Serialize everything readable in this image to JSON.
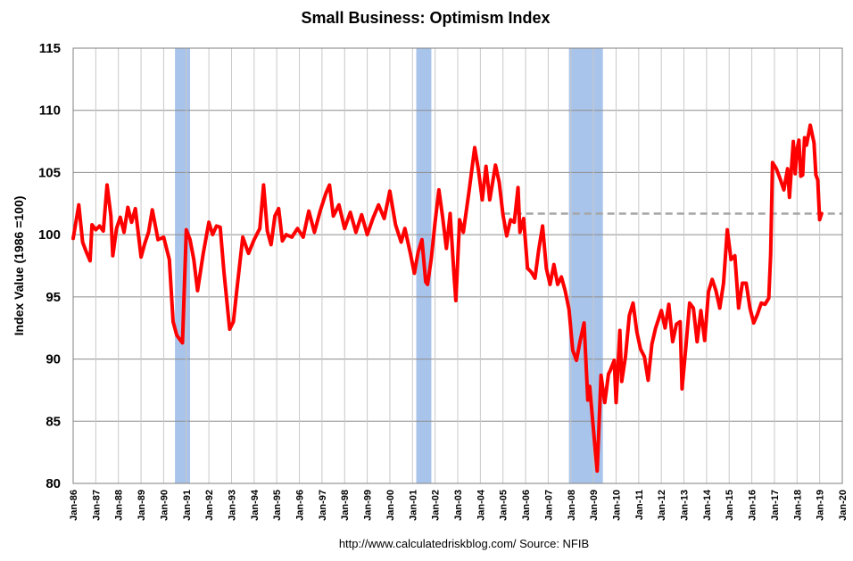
{
  "chart_data": {
    "type": "line",
    "title": "Small Business: Optimism Index",
    "ylabel": "Index Value (1986 =100)",
    "source": "http://www.calculatedriskblog.com/  Source: NFIB",
    "ylim": [
      80,
      115
    ],
    "yticks": [
      80,
      85,
      90,
      95,
      100,
      105,
      110,
      115
    ],
    "xlim": [
      1986,
      2020
    ],
    "xtick_labels": [
      "Jan-86",
      "Jan-87",
      "Jan-88",
      "Jan-89",
      "Jan-90",
      "Jan-91",
      "Jan-92",
      "Jan-93",
      "Jan-94",
      "Jan-95",
      "Jan-96",
      "Jan-97",
      "Jan-98",
      "Jan-99",
      "Jan-00",
      "Jan-01",
      "Jan-02",
      "Jan-03",
      "Jan-04",
      "Jan-05",
      "Jan-06",
      "Jan-07",
      "Jan-08",
      "Jan-09",
      "Jan-10",
      "Jan-11",
      "Jan-12",
      "Jan-13",
      "Jan-14",
      "Jan-15",
      "Jan-16",
      "Jan-17",
      "Jan-18",
      "Jan-19",
      "Jan-20"
    ],
    "grid": true,
    "recessions": [
      {
        "start": "Jul-90",
        "end": "Mar-91"
      },
      {
        "start": "Mar-01",
        "end": "Nov-01"
      },
      {
        "start": "Dec-07",
        "end": "Jun-09"
      }
    ],
    "reference_line": {
      "value": 101.7,
      "from": "Jan-05",
      "to": "Jan-20",
      "style": "dashed",
      "color": "#a6a6a6"
    },
    "series": [
      {
        "color": "#ff0000",
        "points": [
          [
            "Jan-86",
            99.7
          ],
          [
            "Apr-86",
            102.4
          ],
          [
            "Jun-86",
            99.4
          ],
          [
            "Aug-86",
            98.6
          ],
          [
            "Oct-86",
            97.9
          ],
          [
            "Nov-86",
            100.8
          ],
          [
            "Jan-87",
            100.4
          ],
          [
            "Mar-87",
            100.7
          ],
          [
            "May-87",
            100.3
          ],
          [
            "Jul-87",
            104.0
          ],
          [
            "Sep-87",
            101.5
          ],
          [
            "Oct-87",
            98.3
          ],
          [
            "Dec-87",
            100.5
          ],
          [
            "Feb-88",
            101.4
          ],
          [
            "Apr-88",
            100.2
          ],
          [
            "Jun-88",
            102.2
          ],
          [
            "Aug-88",
            101.0
          ],
          [
            "Oct-88",
            102.1
          ],
          [
            "Jan-89",
            98.2
          ],
          [
            "Mar-89",
            99.3
          ],
          [
            "May-89",
            100.2
          ],
          [
            "Jul-89",
            102.0
          ],
          [
            "Oct-89",
            99.6
          ],
          [
            "Jan-90",
            99.8
          ],
          [
            "Apr-90",
            98.0
          ],
          [
            "Jun-90",
            93.0
          ],
          [
            "Aug-90",
            91.9
          ],
          [
            "Nov-90",
            91.3
          ],
          [
            "Jan-91",
            100.4
          ],
          [
            "Mar-91",
            99.6
          ],
          [
            "May-91",
            98.0
          ],
          [
            "Jul-91",
            95.5
          ],
          [
            "Oct-91",
            98.5
          ],
          [
            "Jan-92",
            101.0
          ],
          [
            "Mar-92",
            100.0
          ],
          [
            "May-92",
            100.7
          ],
          [
            "Jul-92",
            100.6
          ],
          [
            "Sep-92",
            97.0
          ],
          [
            "Dec-92",
            92.4
          ],
          [
            "Feb-93",
            93.0
          ],
          [
            "Apr-93",
            95.8
          ],
          [
            "Jul-93",
            99.8
          ],
          [
            "Oct-93",
            98.5
          ],
          [
            "Jan-94",
            99.6
          ],
          [
            "Apr-94",
            100.5
          ],
          [
            "Jun-94",
            104.0
          ],
          [
            "Aug-94",
            100.3
          ],
          [
            "Oct-94",
            99.2
          ],
          [
            "Dec-94",
            101.5
          ],
          [
            "Feb-95",
            102.1
          ],
          [
            "Apr-95",
            99.5
          ],
          [
            "Jun-95",
            100.0
          ],
          [
            "Sep-95",
            99.8
          ],
          [
            "Dec-95",
            100.5
          ],
          [
            "Mar-96",
            99.8
          ],
          [
            "Jun-96",
            101.9
          ],
          [
            "Sep-96",
            100.2
          ],
          [
            "Dec-96",
            101.9
          ],
          [
            "Mar-97",
            103.3
          ],
          [
            "May-97",
            104.0
          ],
          [
            "Jul-97",
            101.5
          ],
          [
            "Oct-97",
            102.4
          ],
          [
            "Jan-98",
            100.5
          ],
          [
            "Apr-98",
            101.8
          ],
          [
            "Jul-98",
            100.2
          ],
          [
            "Oct-98",
            101.6
          ],
          [
            "Jan-99",
            100.0
          ],
          [
            "Apr-99",
            101.3
          ],
          [
            "Jul-99",
            102.4
          ],
          [
            "Oct-99",
            101.3
          ],
          [
            "Jan-00",
            103.5
          ],
          [
            "Apr-00",
            100.8
          ],
          [
            "Jul-00",
            99.4
          ],
          [
            "Sep-00",
            100.5
          ],
          [
            "Dec-00",
            98.4
          ],
          [
            "Feb-01",
            96.9
          ],
          [
            "Apr-01",
            98.6
          ],
          [
            "Jun-01",
            99.6
          ],
          [
            "Aug-01",
            96.2
          ],
          [
            "Sep-01",
            96.0
          ],
          [
            "Nov-01",
            98.1
          ],
          [
            "Jan-02",
            101.0
          ],
          [
            "Mar-02",
            103.6
          ],
          [
            "May-02",
            101.4
          ],
          [
            "Jul-02",
            98.9
          ],
          [
            "Sep-02",
            101.7
          ],
          [
            "Nov-02",
            96.8
          ],
          [
            "Dec-02",
            94.7
          ],
          [
            "Feb-03",
            101.2
          ],
          [
            "Apr-03",
            100.2
          ],
          [
            "Jul-03",
            103.5
          ],
          [
            "Oct-03",
            107.0
          ],
          [
            "Dec-03",
            105.2
          ],
          [
            "Feb-04",
            102.8
          ],
          [
            "Apr-04",
            105.5
          ],
          [
            "Jun-04",
            102.8
          ],
          [
            "Sep-04",
            105.6
          ],
          [
            "Nov-04",
            104.2
          ],
          [
            "Jan-05",
            101.6
          ],
          [
            "Mar-05",
            99.9
          ],
          [
            "May-05",
            101.2
          ],
          [
            "Jul-05",
            101.0
          ],
          [
            "Sep-05",
            103.8
          ],
          [
            "Oct-05",
            100.2
          ],
          [
            "Dec-05",
            101.3
          ],
          [
            "Feb-06",
            97.3
          ],
          [
            "Apr-06",
            97.0
          ],
          [
            "Jun-06",
            96.5
          ],
          [
            "Aug-06",
            98.8
          ],
          [
            "Oct-06",
            100.7
          ],
          [
            "Dec-06",
            97.3
          ],
          [
            "Feb-07",
            96.0
          ],
          [
            "Apr-07",
            97.6
          ],
          [
            "Jun-07",
            96.0
          ],
          [
            "Aug-07",
            96.6
          ],
          [
            "Oct-07",
            95.5
          ],
          [
            "Dec-07",
            94.0
          ],
          [
            "Feb-08",
            90.7
          ],
          [
            "Apr-08",
            89.9
          ],
          [
            "Jun-08",
            91.5
          ],
          [
            "Aug-08",
            92.9
          ],
          [
            "Oct-08",
            86.7
          ],
          [
            "Nov-08",
            87.8
          ],
          [
            "Feb-09",
            82.6
          ],
          [
            "Mar-09",
            81.0
          ],
          [
            "May-09",
            88.7
          ],
          [
            "Jul-09",
            86.5
          ],
          [
            "Sep-09",
            88.8
          ],
          [
            "Oct-09",
            89.1
          ],
          [
            "Dec-09",
            89.9
          ],
          [
            "Jan-10",
            86.5
          ],
          [
            "Mar-10",
            92.3
          ],
          [
            "Apr-10",
            88.2
          ],
          [
            "Jun-10",
            90.2
          ],
          [
            "Aug-10",
            93.5
          ],
          [
            "Oct-10",
            94.5
          ],
          [
            "Dec-10",
            92.2
          ],
          [
            "Feb-11",
            90.8
          ],
          [
            "Apr-11",
            90.2
          ],
          [
            "Jun-11",
            88.3
          ],
          [
            "Aug-11",
            91.2
          ],
          [
            "Oct-11",
            92.5
          ],
          [
            "Jan-12",
            93.9
          ],
          [
            "Mar-12",
            92.5
          ],
          [
            "May-12",
            94.4
          ],
          [
            "Jul-12",
            91.4
          ],
          [
            "Sep-12",
            92.8
          ],
          [
            "Nov-12",
            93.0
          ],
          [
            "Dec-12",
            87.6
          ],
          [
            "Feb-13",
            90.9
          ],
          [
            "Apr-13",
            94.5
          ],
          [
            "Jun-13",
            94.1
          ],
          [
            "Aug-13",
            91.4
          ],
          [
            "Oct-13",
            93.9
          ],
          [
            "Dec-13",
            91.5
          ],
          [
            "Feb-14",
            95.4
          ],
          [
            "Apr-14",
            96.4
          ],
          [
            "Jun-14",
            95.5
          ],
          [
            "Aug-14",
            94.1
          ],
          [
            "Oct-14",
            96.1
          ],
          [
            "Dec-14",
            100.4
          ],
          [
            "Feb-15",
            98.0
          ],
          [
            "Apr-15",
            98.3
          ],
          [
            "Jun-15",
            94.1
          ],
          [
            "Aug-15",
            96.1
          ],
          [
            "Oct-15",
            96.1
          ],
          [
            "Dec-15",
            94.1
          ],
          [
            "Feb-16",
            92.9
          ],
          [
            "Apr-16",
            93.6
          ],
          [
            "Jun-16",
            94.5
          ],
          [
            "Aug-16",
            94.4
          ],
          [
            "Oct-16",
            94.9
          ],
          [
            "Nov-16",
            98.4
          ],
          [
            "Dec-16",
            105.8
          ],
          [
            "Feb-17",
            105.3
          ],
          [
            "Apr-17",
            104.5
          ],
          [
            "Jun-17",
            103.6
          ],
          [
            "Aug-17",
            105.3
          ],
          [
            "Sep-17",
            103.0
          ],
          [
            "Nov-17",
            107.5
          ],
          [
            "Dec-17",
            104.9
          ],
          [
            "Jan-18",
            106.9
          ],
          [
            "Feb-18",
            107.6
          ],
          [
            "Mar-18",
            104.7
          ],
          [
            "Apr-18",
            104.8
          ],
          [
            "May-18",
            107.8
          ],
          [
            "Jun-18",
            107.2
          ],
          [
            "Aug-18",
            108.8
          ],
          [
            "Oct-18",
            107.4
          ],
          [
            "Nov-18",
            104.8
          ],
          [
            "Dec-18",
            104.4
          ],
          [
            "Jan-19",
            101.2
          ],
          [
            "Feb-19",
            101.7
          ]
        ]
      }
    ]
  }
}
